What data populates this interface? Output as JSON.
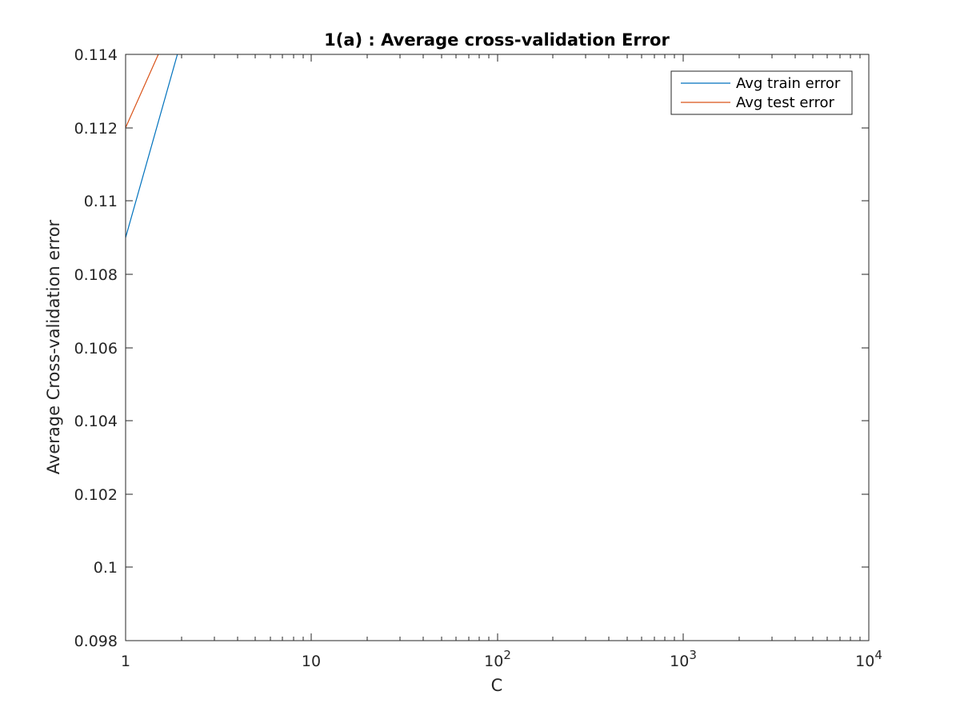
{
  "chart_data": {
    "type": "line",
    "title": "1(a) : Average cross-validation Error",
    "xlabel": "C",
    "ylabel": "Average Cross-validation error",
    "xscale": "log",
    "xlim": [
      1,
      10000
    ],
    "ylim": [
      0.098,
      0.114
    ],
    "grid": false,
    "legend_position": "top-right",
    "xticks": [
      {
        "value": 1,
        "base": "1",
        "exp": ""
      },
      {
        "value": 10,
        "base": "10",
        "exp": ""
      },
      {
        "value": 100,
        "base": "10",
        "exp": "2"
      },
      {
        "value": 1000,
        "base": "10",
        "exp": "3"
      },
      {
        "value": 10000,
        "base": "10",
        "exp": "4"
      }
    ],
    "yticks": [
      {
        "value": 0.098,
        "label": "0.098"
      },
      {
        "value": 0.1,
        "label": "0.1"
      },
      {
        "value": 0.102,
        "label": "0.102"
      },
      {
        "value": 0.104,
        "label": "0.104"
      },
      {
        "value": 0.106,
        "label": "0.106"
      },
      {
        "value": 0.108,
        "label": "0.108"
      },
      {
        "value": 0.11,
        "label": "0.11"
      },
      {
        "value": 0.112,
        "label": "0.112"
      },
      {
        "value": 0.114,
        "label": "0.114"
      }
    ],
    "series": [
      {
        "name": "Avg train error",
        "color": "#0072BD",
        "x": [
          1,
          1.9
        ],
        "y": [
          0.109,
          0.114
        ]
      },
      {
        "name": "Avg test error",
        "color": "#D95319",
        "x": [
          1,
          1.5
        ],
        "y": [
          0.112,
          0.114
        ]
      }
    ]
  }
}
